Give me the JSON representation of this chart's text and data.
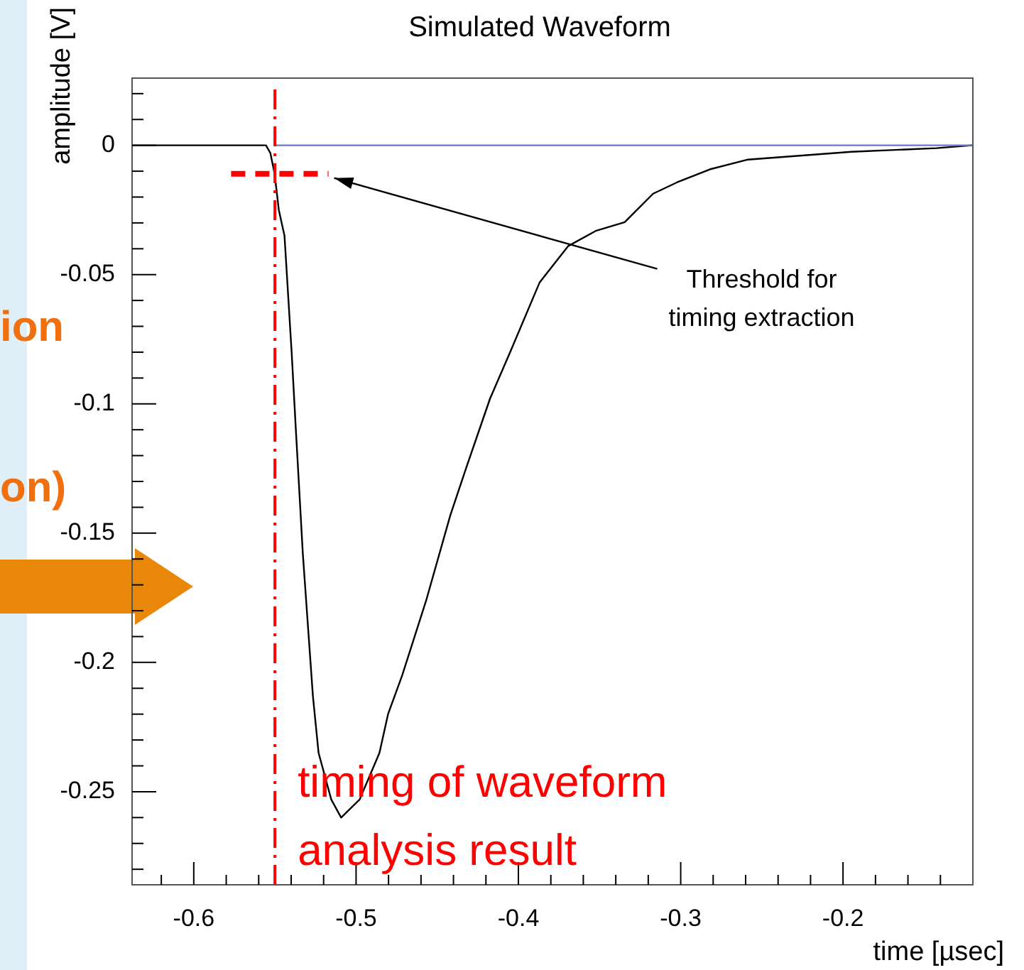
{
  "chart_data": {
    "type": "line",
    "title": "Simulated Waveform",
    "xlabel": "time [µsec]",
    "ylabel": "amplitude [V]",
    "xlim": [
      -0.638,
      -0.12
    ],
    "ylim": [
      -0.286,
      0.026
    ],
    "xticks": [
      {
        "value": -0.62,
        "label": null
      },
      -0.6,
      {
        "value": -0.58,
        "label": null
      },
      {
        "value": -0.56,
        "label": null
      },
      {
        "value": -0.54,
        "label": null
      },
      {
        "value": -0.52,
        "label": null
      },
      -0.5,
      {
        "value": -0.48,
        "label": null
      },
      {
        "value": -0.46,
        "label": null
      },
      {
        "value": -0.44,
        "label": null
      },
      {
        "value": -0.42,
        "label": null
      },
      -0.4,
      {
        "value": -0.38,
        "label": null
      },
      {
        "value": -0.36,
        "label": null
      },
      {
        "value": -0.34,
        "label": null
      },
      {
        "value": -0.32,
        "label": null
      },
      -0.3,
      {
        "value": -0.28,
        "label": null
      },
      {
        "value": -0.26,
        "label": null
      },
      {
        "value": -0.24,
        "label": null
      },
      {
        "value": -0.22,
        "label": null
      },
      -0.2,
      {
        "value": -0.18,
        "label": null
      },
      {
        "value": -0.16,
        "label": null
      },
      {
        "value": -0.14,
        "label": null
      }
    ],
    "yticks": [
      {
        "value": 0.02,
        "label": null
      },
      {
        "value": 0.01,
        "label": null
      },
      0,
      {
        "value": -0.01,
        "label": null
      },
      {
        "value": -0.02,
        "label": null
      },
      {
        "value": -0.03,
        "label": null
      },
      {
        "value": -0.04,
        "label": null
      },
      -0.05,
      {
        "value": -0.06,
        "label": null
      },
      {
        "value": -0.07,
        "label": null
      },
      {
        "value": -0.08,
        "label": null
      },
      {
        "value": -0.09,
        "label": null
      },
      -0.1,
      {
        "value": -0.11,
        "label": null
      },
      {
        "value": -0.12,
        "label": null
      },
      {
        "value": -0.13,
        "label": null
      },
      {
        "value": -0.14,
        "label": null
      },
      -0.15,
      {
        "value": -0.16,
        "label": null
      },
      {
        "value": -0.17,
        "label": null
      },
      {
        "value": -0.18,
        "label": null
      },
      {
        "value": -0.19,
        "label": null
      },
      -0.2,
      {
        "value": -0.21,
        "label": null
      },
      {
        "value": -0.22,
        "label": null
      },
      {
        "value": -0.23,
        "label": null
      },
      {
        "value": -0.24,
        "label": null
      },
      -0.25,
      {
        "value": -0.26,
        "label": null
      },
      {
        "value": -0.27,
        "label": null
      },
      {
        "value": -0.28,
        "label": null
      }
    ],
    "grid": false,
    "legend": false,
    "marker": "none",
    "series": [
      {
        "color": "#6677cc",
        "line_style": "solid",
        "x": [
          -0.55,
          -0.1205
        ],
        "values": [
          0,
          0
        ]
      },
      {
        "color": "#000000",
        "line_style": "solid",
        "x": [
          -0.6376,
          -0.5555,
          -0.5528,
          -0.5502,
          -0.5476,
          -0.5441,
          -0.5397,
          -0.5371,
          -0.5328,
          -0.5266,
          -0.5231,
          -0.5153,
          -0.5092,
          -0.4978,
          -0.4856,
          -0.4803,
          -0.4716,
          -0.4568,
          -0.4419,
          -0.4323,
          -0.4175,
          -0.4044,
          -0.3869,
          -0.3694,
          -0.352,
          -0.3345,
          -0.317,
          -0.3022,
          -0.2821,
          -0.2585,
          -0.1948,
          -0.1424,
          -0.1205
        ],
        "values": [
          0,
          0,
          -0.003,
          -0.011,
          -0.025,
          -0.035,
          -0.08,
          -0.11,
          -0.158,
          -0.213,
          -0.235,
          -0.253,
          -0.26,
          -0.253,
          -0.235,
          -0.22,
          -0.205,
          -0.176,
          -0.143,
          -0.125,
          -0.098,
          -0.079,
          -0.053,
          -0.039,
          -0.033,
          -0.0297,
          -0.0187,
          -0.0143,
          -0.0093,
          -0.0055,
          -0.0025,
          -0.0011,
          0
        ]
      },
      {
        "color": "#ff0000",
        "line_style": "dashed",
        "x": [
          -0.577,
          -0.517
        ],
        "values": [
          -0.011,
          -0.011
        ]
      }
    ],
    "ref_lines": [
      {
        "axis": "x",
        "value": -0.55,
        "label": "timing of waveform analysis result",
        "color": "#ff0000",
        "line_style": "dashed"
      }
    ],
    "annotations": [
      {
        "text": "Threshold for timing extraction",
        "x": -0.517,
        "y": -0.011
      },
      "ion",
      "on)"
    ]
  }
}
